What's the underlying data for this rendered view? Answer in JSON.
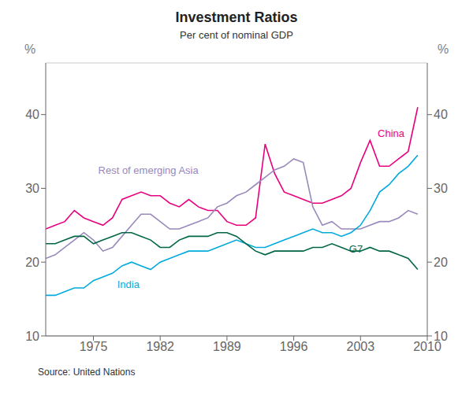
{
  "chart_data": {
    "type": "line",
    "title": "Investment Ratios",
    "subtitle": "Per cent of nominal GDP",
    "y_label": "%",
    "y2_label": "%",
    "source": "Source: United Nations",
    "x": [
      1970,
      1971,
      1972,
      1973,
      1974,
      1975,
      1976,
      1977,
      1978,
      1979,
      1980,
      1981,
      1982,
      1983,
      1984,
      1985,
      1986,
      1987,
      1988,
      1989,
      1990,
      1991,
      1992,
      1993,
      1994,
      1995,
      1996,
      1997,
      1998,
      1999,
      2000,
      2001,
      2002,
      2003,
      2004,
      2005,
      2006,
      2007,
      2008,
      2009
    ],
    "series": [
      {
        "name": "China",
        "color": "#e8007f",
        "values": [
          24.5,
          25.0,
          25.5,
          27.0,
          26.0,
          25.5,
          25.0,
          26.0,
          28.5,
          29.0,
          29.5,
          29.0,
          29.0,
          28.0,
          27.5,
          28.5,
          27.5,
          27.0,
          27.0,
          25.5,
          25.0,
          25.0,
          26.0,
          36.0,
          32.0,
          29.5,
          29.0,
          28.5,
          28.0,
          28.0,
          28.5,
          29.0,
          30.0,
          33.5,
          36.5,
          33.0,
          33.0,
          34.0,
          35.0,
          41.0
        ]
      },
      {
        "name": "Rest of emerging Asia",
        "color": "#9988bb",
        "values": [
          20.5,
          21.0,
          22.0,
          23.0,
          24.0,
          23.0,
          21.5,
          22.0,
          23.5,
          25.0,
          26.5,
          26.5,
          25.5,
          24.5,
          24.5,
          25.0,
          25.5,
          26.0,
          27.5,
          28.0,
          29.0,
          29.5,
          30.5,
          31.5,
          32.5,
          33.0,
          34.0,
          33.5,
          27.5,
          25.0,
          25.5,
          24.5,
          24.5,
          24.5,
          25.0,
          25.5,
          25.5,
          26.0,
          27.0,
          26.5
        ]
      },
      {
        "name": "India",
        "color": "#00aadd",
        "values": [
          15.5,
          15.5,
          16.0,
          16.5,
          16.5,
          17.5,
          18.0,
          18.5,
          19.5,
          20.0,
          19.5,
          19.0,
          20.0,
          20.5,
          21.0,
          21.5,
          21.5,
          21.5,
          22.0,
          22.5,
          23.0,
          22.5,
          22.0,
          22.0,
          22.5,
          23.0,
          23.5,
          24.0,
          24.5,
          24.0,
          24.0,
          23.5,
          24.0,
          25.0,
          27.0,
          29.5,
          30.5,
          32.0,
          33.0,
          34.5
        ]
      },
      {
        "name": "G7",
        "color": "#006644",
        "values": [
          22.5,
          22.5,
          23.0,
          23.5,
          23.5,
          22.5,
          23.0,
          23.5,
          24.0,
          24.0,
          23.5,
          23.0,
          22.0,
          22.0,
          23.0,
          23.5,
          23.5,
          23.5,
          24.0,
          24.0,
          23.5,
          22.5,
          21.5,
          21.0,
          21.5,
          21.5,
          21.5,
          21.5,
          22.0,
          22.0,
          22.5,
          22.0,
          21.5,
          21.5,
          22.0,
          21.5,
          21.5,
          21.0,
          20.5,
          19.0
        ]
      }
    ],
    "annotations": [
      {
        "text": "China",
        "x": 2004.8,
        "y": 37.5,
        "color": "#e8007f"
      },
      {
        "text": "Rest of emerging Asia",
        "x": 1975.5,
        "y": 32.5,
        "color": "#9988bb"
      },
      {
        "text": "India",
        "x": 1977.5,
        "y": 17.0,
        "color": "#00aadd"
      },
      {
        "text": "G7",
        "x": 2001.8,
        "y": 21.8,
        "color": "#006644"
      }
    ],
    "xlim": [
      1970,
      2010
    ],
    "xticks": [
      1975,
      1982,
      1989,
      1996,
      2003,
      2010
    ],
    "ylim": [
      10,
      47
    ],
    "yticks": [
      10,
      20,
      30,
      40
    ],
    "y2lim": [
      10,
      47
    ],
    "y2ticks": [
      10,
      20,
      30,
      40
    ],
    "grid": true
  }
}
